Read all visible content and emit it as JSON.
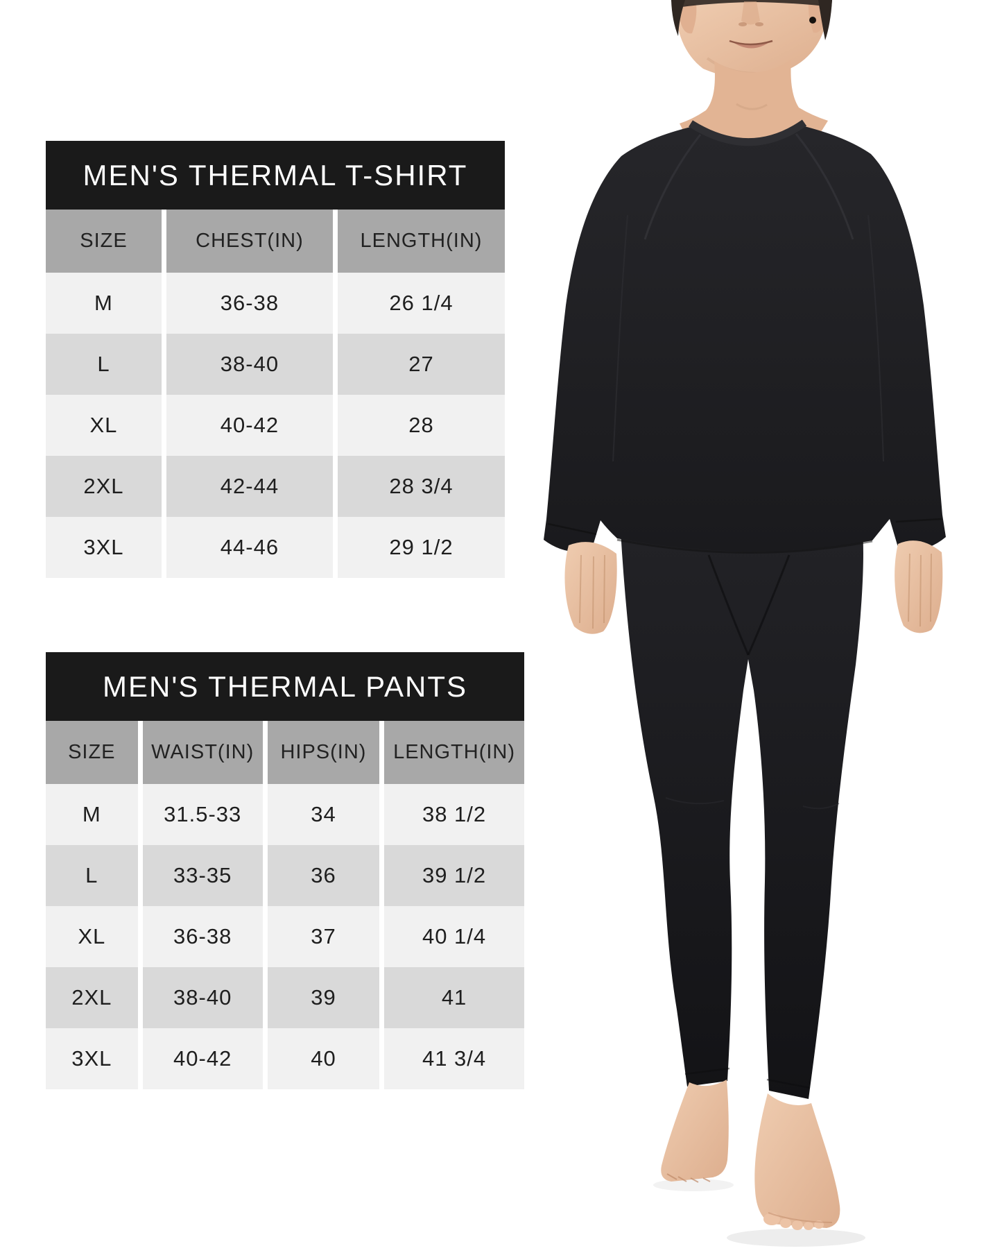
{
  "page": {
    "kind": "product size chart image",
    "background": "#ffffff"
  },
  "colors": {
    "table_title_bg": "#1a1a1a",
    "table_title_fg": "#ffffff",
    "table_header_bg": "#a8a8a8",
    "row_light": "#f1f1f1",
    "row_dark": "#d9d9d9",
    "cell_fg": "#1e1e1e",
    "garment_black": "#1f1f22",
    "skin_tone": "#e9c2a5"
  },
  "tables": [
    {
      "title": "MEN'S THERMAL T-SHIRT",
      "columns": [
        "SIZE",
        "CHEST(IN)",
        "LENGTH(IN)"
      ],
      "rows": [
        [
          "M",
          "36-38",
          "26 1/4"
        ],
        [
          "L",
          "38-40",
          "27"
        ],
        [
          "XL",
          "40-42",
          "28"
        ],
        [
          "2XL",
          "42-44",
          "28 3/4"
        ],
        [
          "3XL",
          "44-46",
          "29 1/2"
        ]
      ]
    },
    {
      "title": "MEN'S THERMAL PANTS",
      "columns": [
        "SIZE",
        "WAIST(IN)",
        "HIPS(IN)",
        "LENGTH(IN)"
      ],
      "rows": [
        [
          "M",
          "31.5-33",
          "34",
          "38 1/2"
        ],
        [
          "L",
          "33-35",
          "36",
          "39 1/2"
        ],
        [
          "XL",
          "36-38",
          "37",
          "40 1/4"
        ],
        [
          "2XL",
          "38-40",
          "39",
          "41"
        ],
        [
          "3XL",
          "40-42",
          "40",
          "41 3/4"
        ]
      ]
    }
  ],
  "figure": {
    "description": "Barefoot man modeling black long-sleeve crew-neck thermal top and matching thermal leggings, mid-step pose, head cropped at eye level"
  }
}
